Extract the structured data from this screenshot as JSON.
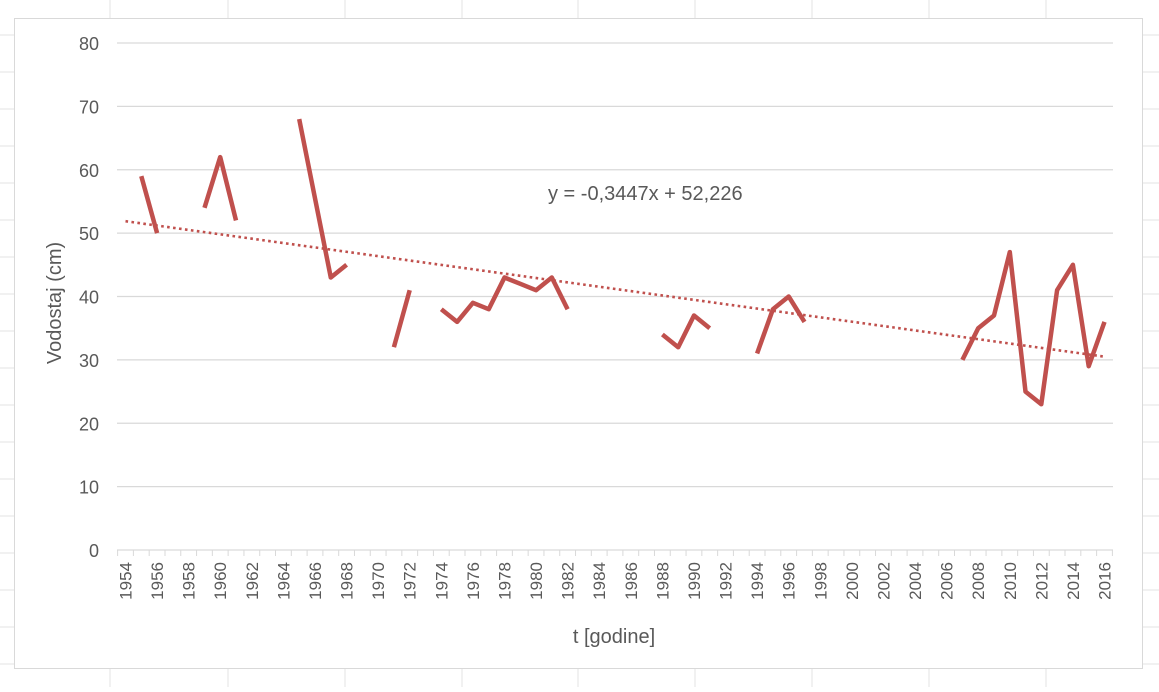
{
  "chart_data": {
    "type": "line",
    "title": "",
    "xlabel": "t [godine]",
    "ylabel": "Vodostaj (cm)",
    "ylim": [
      0,
      80
    ],
    "xlim": [
      1954,
      2016
    ],
    "yticks": [
      "0",
      "10",
      "20",
      "30",
      "40",
      "50",
      "60",
      "70",
      "80"
    ],
    "xticks": [
      "1954",
      "1956",
      "1958",
      "1960",
      "1962",
      "1964",
      "1966",
      "1968",
      "1970",
      "1972",
      "1974",
      "1976",
      "1978",
      "1980",
      "1982",
      "1984",
      "1986",
      "1988",
      "1990",
      "1992",
      "1994",
      "1996",
      "1998",
      "2000",
      "2002",
      "2004",
      "2006",
      "2008",
      "2010",
      "2012",
      "2014",
      "2016"
    ],
    "grid": true,
    "legend": "none",
    "series_color": "#c0504d",
    "segments": [
      {
        "x": [
          1955,
          1956
        ],
        "y": [
          59,
          50
        ]
      },
      {
        "x": [
          1959,
          1960,
          1961
        ],
        "y": [
          54,
          62,
          52
        ]
      },
      {
        "x": [
          1965,
          1967,
          1968
        ],
        "y": [
          68,
          43,
          45
        ]
      },
      {
        "x": [
          1971,
          1972
        ],
        "y": [
          32,
          41
        ]
      },
      {
        "x": [
          1974,
          1975,
          1976,
          1977,
          1978,
          1979,
          1980,
          1981,
          1982
        ],
        "y": [
          38,
          36,
          39,
          38,
          43,
          42,
          41,
          43,
          38
        ]
      },
      {
        "x": [
          1988,
          1989,
          1990,
          1991
        ],
        "y": [
          34,
          32,
          37,
          35
        ]
      },
      {
        "x": [
          1994,
          1995,
          1996,
          1997
        ],
        "y": [
          31,
          38,
          40,
          36
        ]
      },
      {
        "x": [
          2007,
          2008,
          2009,
          2010,
          2011,
          2012,
          2013,
          2014,
          2015,
          2016
        ],
        "y": [
          30,
          35,
          37,
          47,
          25,
          23,
          41,
          45,
          29,
          36
        ]
      }
    ],
    "trendline": {
      "equation": "y = -0,3447x + 52,226",
      "slope": -0.3447,
      "intercept": 52.226,
      "x_start": 1954,
      "x_end": 2016,
      "style": "dotted",
      "color": "#c0504d"
    }
  }
}
